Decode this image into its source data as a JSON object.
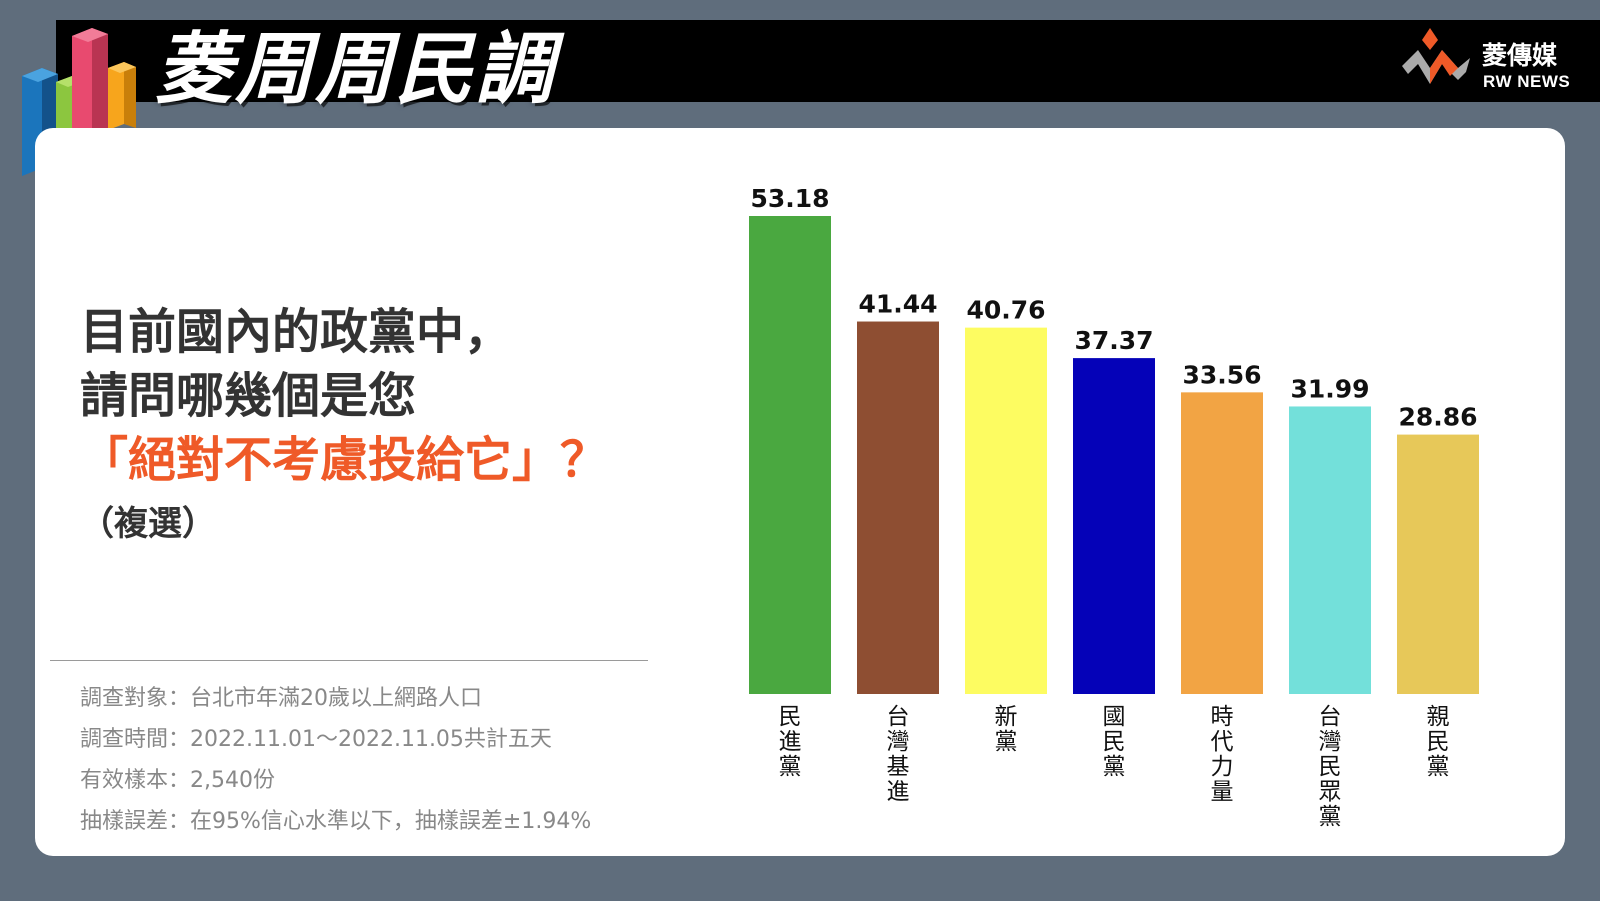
{
  "header": {
    "title": "菱周周民調",
    "brand_cn": "菱傳媒",
    "brand_en": "RW NEWS"
  },
  "question": {
    "line1": "目前國內的政黨中，",
    "line2": "請問哪幾個是您",
    "highlight": "「絕對不考慮投給它」？",
    "note": "（複選）"
  },
  "survey_info": [
    "調查對象：台北市年滿20歲以上網路人口",
    "調查時間：2022.11.01～2022.11.05共計五天",
    "有效樣本：2,540份",
    "抽樣誤差：在95%信心水準以下，抽樣誤差±1.94%"
  ],
  "colors": {
    "accent": "#ef5a28",
    "background": "#5f6d7c",
    "header": "#000000"
  },
  "chart_data": {
    "type": "bar",
    "title": "",
    "xlabel": "",
    "ylabel": "",
    "ylim": [
      0,
      53.18
    ],
    "grid": false,
    "categories": [
      "民進黨",
      "台灣基進",
      "新黨",
      "國民黨",
      "時代力量",
      "台灣民眾黨",
      "親民黨"
    ],
    "values": [
      53.18,
      41.44,
      40.76,
      37.37,
      33.56,
      31.99,
      28.86
    ],
    "value_labels": [
      "53.18",
      "41.44",
      "40.76",
      "37.37",
      "33.56",
      "31.99",
      "28.86"
    ],
    "bar_colors": [
      "#4aa840",
      "#8e4e32",
      "#fdfc61",
      "#0502b8",
      "#f2a444",
      "#73e0da",
      "#e7c859"
    ]
  }
}
